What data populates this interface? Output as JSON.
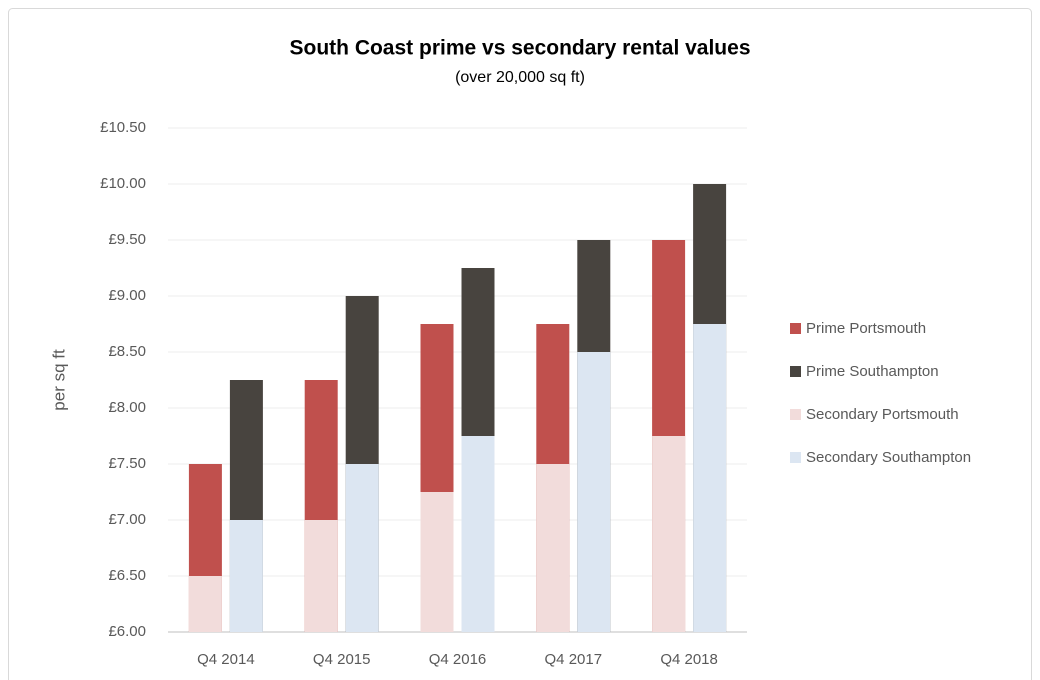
{
  "chart_data": {
    "type": "bar",
    "title": "South Coast prime vs secondary rental values",
    "subtitle": "(over 20,000 sq ft)",
    "y_label": "per sq ft",
    "categories": [
      "Q4 2014",
      "Q4 2015",
      "Q4 2016",
      "Q4 2017",
      "Q4 2018"
    ],
    "series": [
      {
        "name": "Prime Portsmouth",
        "color": "#c0504d",
        "values": [
          7.5,
          8.25,
          8.75,
          8.75,
          9.5
        ]
      },
      {
        "name": "Prime Southampton",
        "color": "#48443f",
        "values": [
          8.25,
          9.0,
          9.25,
          9.5,
          10.0
        ]
      },
      {
        "name": "Secondary Portsmouth",
        "color": "#f2dcdb",
        "values": [
          6.5,
          7.0,
          7.25,
          7.5,
          7.75
        ]
      },
      {
        "name": "Secondary Southampton",
        "color": "#dce6f2",
        "values": [
          7.0,
          7.5,
          7.75,
          8.5,
          8.75
        ]
      }
    ],
    "ylim": [
      6,
      10.5
    ],
    "yticks": [
      {
        "value": 6,
        "label": "£6.00"
      },
      {
        "value": 6.5,
        "label": "£6.50"
      },
      {
        "value": 7,
        "label": "£7.00"
      },
      {
        "value": 7.5,
        "label": "£7.50"
      },
      {
        "value": 8,
        "label": "£8.00"
      },
      {
        "value": 8.5,
        "label": "£8.50"
      },
      {
        "value": 9,
        "label": "£9.00"
      },
      {
        "value": 9.5,
        "label": "£9.50"
      },
      {
        "value": 10,
        "label": "£10.00"
      },
      {
        "value": 10.5,
        "label": "£10.50"
      }
    ],
    "grid": true,
    "legend": "right"
  }
}
